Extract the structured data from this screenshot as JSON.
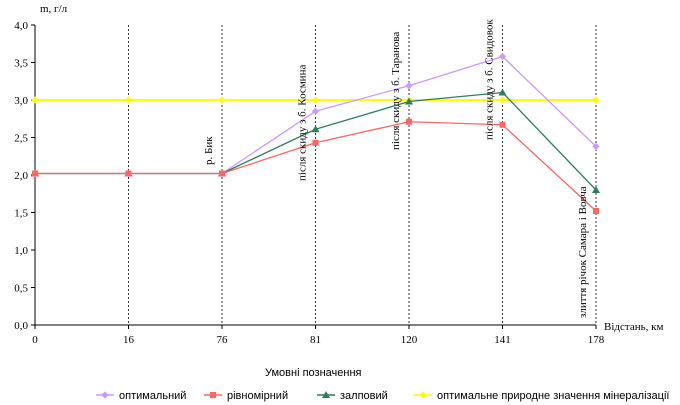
{
  "chart_data": {
    "type": "line",
    "ylabel": "m, г/л",
    "xlabel": "Відстань, км",
    "categories": [
      "0",
      "16",
      "76",
      "81",
      "120",
      "141",
      "178"
    ],
    "ylim": [
      0,
      4
    ],
    "yticks": [
      "0,0",
      "0,5",
      "1,0",
      "1,5",
      "2,0",
      "2,5",
      "3,0",
      "3,5",
      "4,0"
    ],
    "grid": "vertical-dashed",
    "series": [
      {
        "name": "оптимальний",
        "color": "#cc99ff",
        "marker": "diamond",
        "values": [
          2.02,
          2.02,
          2.02,
          2.85,
          3.19,
          3.58,
          2.38
        ]
      },
      {
        "name": "рівномірний",
        "color": "#ff6666",
        "marker": "square",
        "values": [
          2.02,
          2.02,
          2.02,
          2.43,
          2.71,
          2.67,
          1.52
        ]
      },
      {
        "name": "залповий",
        "color": "#2e7d5b",
        "marker": "triangle",
        "values": [
          2.02,
          2.02,
          2.02,
          2.61,
          2.98,
          3.1,
          1.8
        ]
      },
      {
        "name": "оптимальне природне значення мінералізації",
        "color": "#ffff00",
        "marker": "diamond",
        "values": [
          3.0,
          3.0,
          3.0,
          3.0,
          3.0,
          3.0,
          3.0
        ]
      }
    ],
    "annotations": [
      {
        "category": "76",
        "text": "р. Бик"
      },
      {
        "category": "81",
        "text": "після скиду з б. Космина"
      },
      {
        "category": "120",
        "text": "після скиду з б. Таранова"
      },
      {
        "category": "141",
        "text": "після скиду з б. Свидовок"
      },
      {
        "category": "178",
        "text": "злиття річок Самара і Вовча"
      }
    ],
    "legend_title": "Умовні позначення",
    "legend_position": "bottom"
  }
}
